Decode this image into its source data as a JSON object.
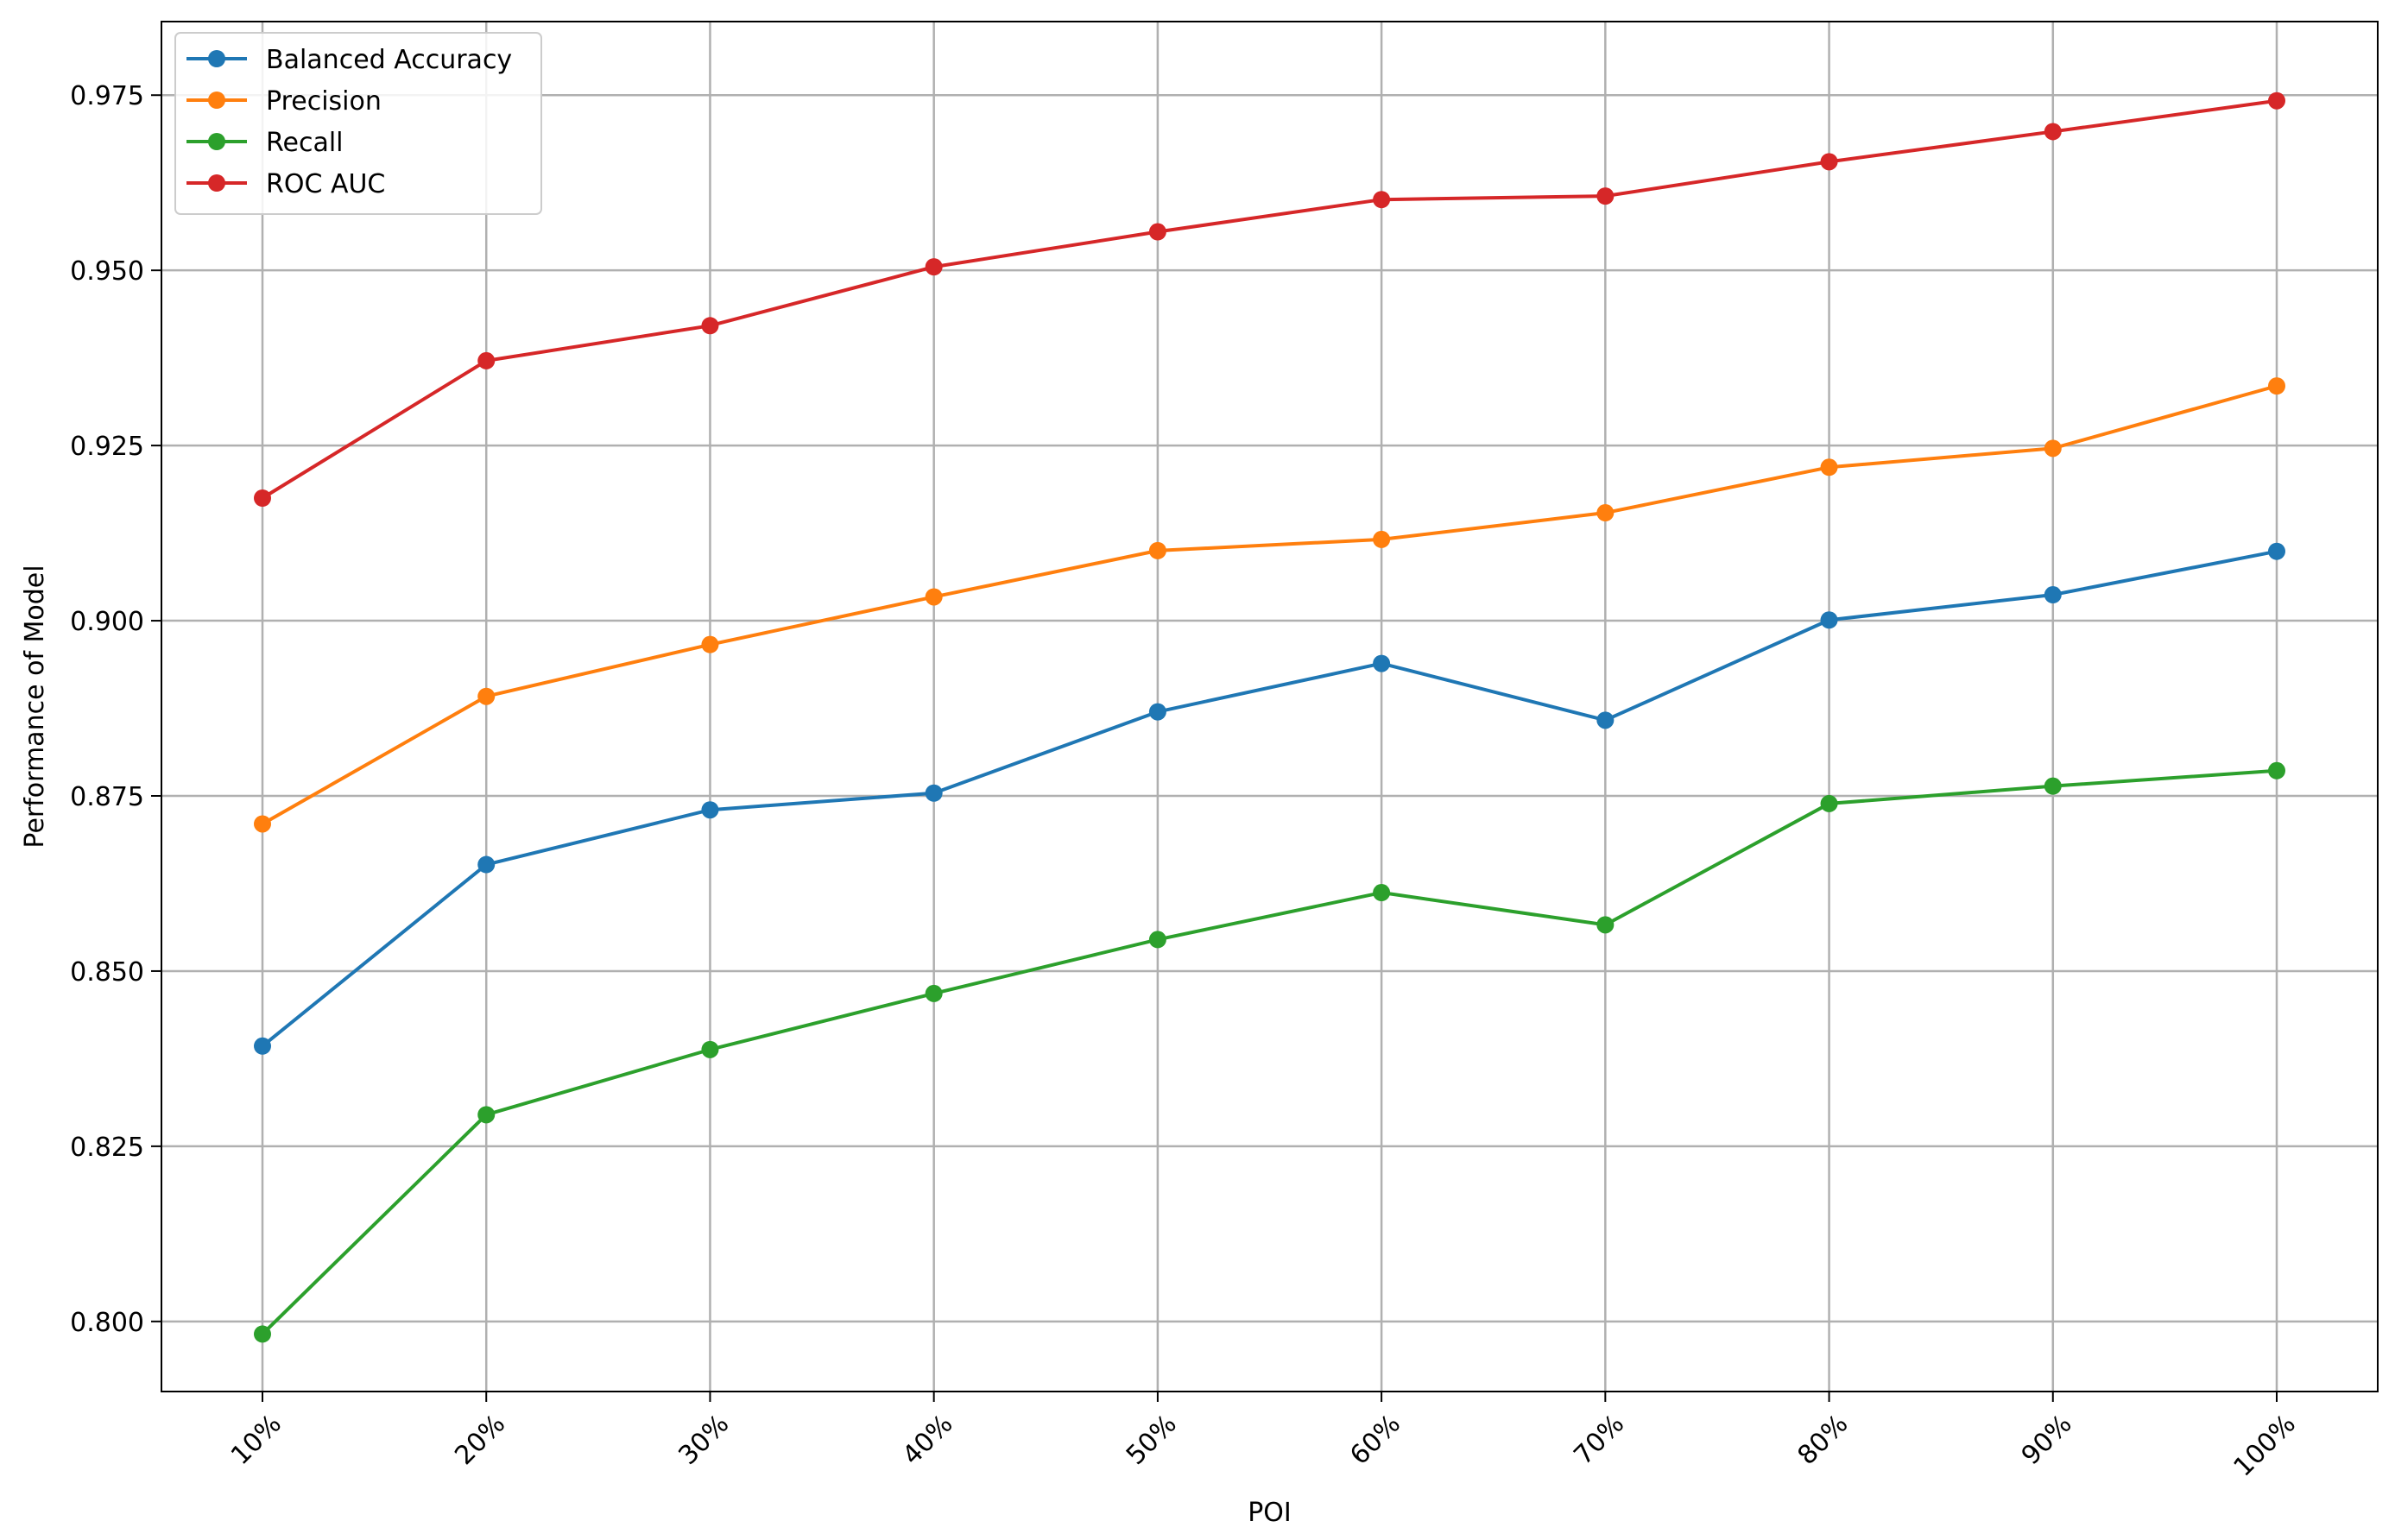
{
  "chart_data": {
    "type": "line",
    "title": "",
    "xlabel": "POI",
    "ylabel": "Performance of Model",
    "categories": [
      "10%",
      "20%",
      "30%",
      "40%",
      "50%",
      "60%",
      "70%",
      "80%",
      "90%",
      "100%"
    ],
    "ylim": [
      0.79,
      0.9855
    ],
    "yticks": [
      0.8,
      0.825,
      0.85,
      0.875,
      0.9,
      0.925,
      0.95,
      0.975
    ],
    "ytick_labels": [
      "0.800",
      "0.825",
      "0.850",
      "0.875",
      "0.900",
      "0.925",
      "0.950",
      "0.975"
    ],
    "grid": true,
    "legend_position": "top-left",
    "series": [
      {
        "name": "Balanced Accuracy",
        "color": "#1f77b4",
        "values": [
          0.8393,
          0.8652,
          0.873,
          0.8754,
          0.887,
          0.8939,
          0.8858,
          0.9001,
          0.9037,
          0.9099
        ]
      },
      {
        "name": "Precision",
        "color": "#ff7f0e",
        "values": [
          0.871,
          0.8892,
          0.8966,
          0.9034,
          0.91,
          0.9116,
          0.9154,
          0.9219,
          0.9246,
          0.9335
        ]
      },
      {
        "name": "Recall",
        "color": "#2ca02c",
        "values": [
          0.7982,
          0.8295,
          0.8388,
          0.8468,
          0.8545,
          0.8612,
          0.8566,
          0.8739,
          0.8764,
          0.8786
        ]
      },
      {
        "name": "ROC AUC",
        "color": "#d62728",
        "values": [
          0.9175,
          0.9371,
          0.9421,
          0.9505,
          0.9555,
          0.9601,
          0.9606,
          0.9655,
          0.9698,
          0.9742
        ]
      }
    ]
  }
}
